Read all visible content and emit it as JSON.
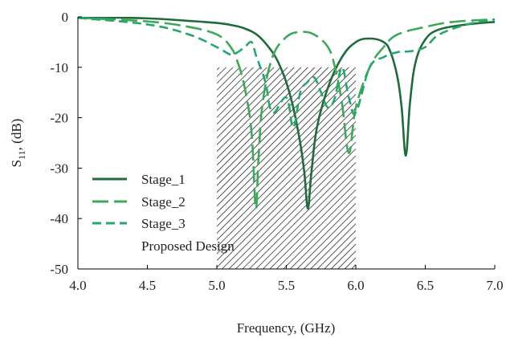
{
  "chart_data": {
    "type": "line",
    "xlabel": "Frequency, (GHz)",
    "ylabel_main": "S",
    "ylabel_sub": "11",
    "ylabel_rest": ", (dB)",
    "xlim": [
      4.0,
      7.0
    ],
    "ylim": [
      -50,
      0
    ],
    "xticks": [
      "4.0",
      "4.5",
      "5.0",
      "5.5",
      "6.0",
      "6.5",
      "7.0"
    ],
    "yticks": [
      "0",
      "-10",
      "-20",
      "-30",
      "-40",
      "-50"
    ],
    "grid": false,
    "legend_position": "bottom-left",
    "band": {
      "x": [
        5.0,
        6.0
      ],
      "y": [
        -10,
        -50
      ],
      "pattern": "hatched"
    },
    "series": [
      {
        "name": "Stage_1",
        "color": "#1f6b3a",
        "dash": "solid",
        "x": [
          4.0,
          4.5,
          4.8,
          5.0,
          5.1,
          5.2,
          5.3,
          5.4,
          5.45,
          5.5,
          5.55,
          5.6,
          5.63,
          5.655,
          5.68,
          5.72,
          5.8,
          5.9,
          6.0,
          6.1,
          6.2,
          6.25,
          6.3,
          6.33,
          6.36,
          6.39,
          6.43,
          6.5,
          6.6,
          6.8,
          7.0
        ],
        "y": [
          0,
          -0.3,
          -0.8,
          -1.2,
          -1.6,
          -2.3,
          -3.8,
          -7,
          -9.5,
          -13,
          -18,
          -25,
          -31,
          -38,
          -31,
          -22,
          -14,
          -8,
          -5,
          -4.3,
          -5,
          -7,
          -12,
          -18,
          -27.5,
          -17,
          -9,
          -4.5,
          -2.5,
          -1.5,
          -1.0
        ]
      },
      {
        "name": "Stage_2",
        "color": "#3ea85a",
        "dash": "long",
        "x": [
          4.0,
          4.5,
          4.8,
          5.0,
          5.1,
          5.15,
          5.2,
          5.25,
          5.28,
          5.3,
          5.33,
          5.4,
          5.5,
          5.6,
          5.7,
          5.8,
          5.85,
          5.9,
          5.95,
          6.0,
          6.1,
          6.2,
          6.3,
          6.5,
          6.7,
          7.0
        ],
        "y": [
          -0.2,
          -0.9,
          -2,
          -3.5,
          -6,
          -9,
          -14,
          -23,
          -38,
          -28,
          -17,
          -8,
          -4,
          -3,
          -3.5,
          -6,
          -10,
          -17,
          -27,
          -18,
          -10,
          -6,
          -3.5,
          -2,
          -1,
          -0.5
        ]
      },
      {
        "name": "Stage_3",
        "color": "#22a86a",
        "dash": "mid",
        "x": [
          4.0,
          4.5,
          4.8,
          5.0,
          5.1,
          5.15,
          5.2,
          5.25,
          5.28,
          5.3,
          5.35,
          5.4,
          5.5,
          5.55,
          5.6,
          5.65,
          5.7,
          5.75,
          5.8,
          5.85,
          5.9,
          5.95,
          6.0,
          6.1,
          6.2,
          6.3,
          6.4,
          6.5,
          6.6,
          6.8,
          7.0
        ],
        "y": [
          -0.2,
          -1.5,
          -3.5,
          -6,
          -7.5,
          -7,
          -6,
          -5,
          -7.5,
          -9,
          -13,
          -19,
          -16,
          -22,
          -15,
          -13,
          -12,
          -15,
          -18,
          -16,
          -10,
          -16,
          -19,
          -10,
          -8,
          -7,
          -6.8,
          -6,
          -3.5,
          -1.5,
          -0.5
        ]
      }
    ],
    "legend": [
      {
        "label": "Stage_1"
      },
      {
        "label": "Stage_2"
      },
      {
        "label": "Stage_3"
      },
      {
        "label": "Proposed Design"
      }
    ]
  }
}
